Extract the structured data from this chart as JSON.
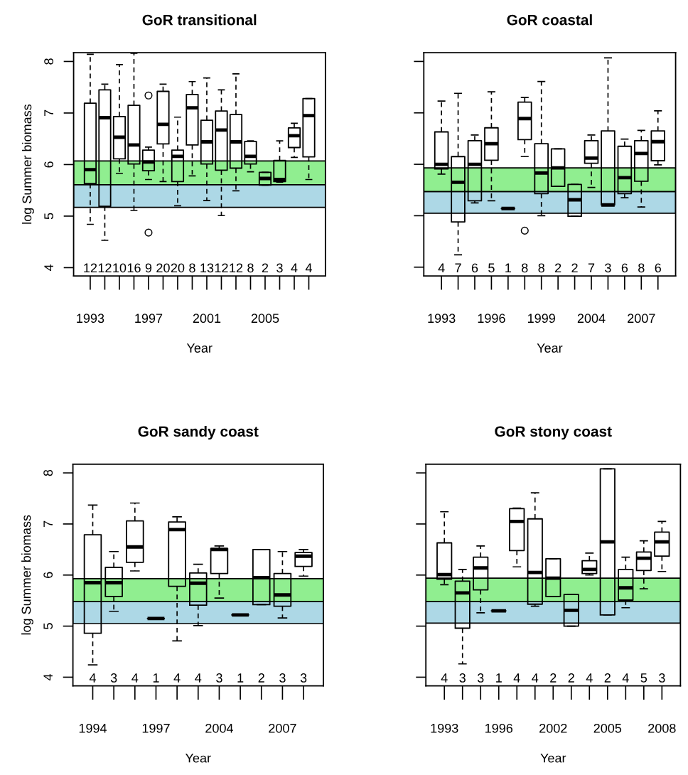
{
  "chart_data": [
    {
      "type": "box",
      "title": "GoR transitional",
      "xlabel": "Year",
      "ylabel": "log Summer biomass",
      "categories": [
        "1993",
        null,
        null,
        null,
        "1997",
        null,
        null,
        null,
        "2001",
        null,
        null,
        null,
        "2005",
        null,
        null,
        null
      ],
      "boxes": [
        {
          "low": 4.84,
          "q1": 5.63,
          "median": 5.9,
          "q3": 7.19,
          "high": 8.14
        },
        {
          "low": 4.53,
          "q1": 5.19,
          "median": 6.91,
          "q3": 7.45,
          "high": 7.56
        },
        {
          "low": 5.83,
          "q1": 6.11,
          "median": 6.53,
          "q3": 6.93,
          "high": 7.94
        },
        {
          "low": 5.11,
          "q1": 6.01,
          "median": 6.38,
          "q3": 7.15,
          "high": 8.16
        },
        {
          "low": 5.71,
          "q1": 5.88,
          "median": 6.05,
          "q3": 6.28,
          "high": 6.34,
          "outliers": [
            7.34,
            4.68
          ]
        },
        {
          "low": 5.67,
          "q1": 6.4,
          "median": 6.78,
          "q3": 7.42,
          "high": 7.56
        },
        {
          "low": 5.2,
          "q1": 5.67,
          "median": 6.16,
          "q3": 6.28,
          "high": 6.92
        },
        {
          "low": 5.78,
          "q1": 6.38,
          "median": 7.1,
          "q3": 7.36,
          "high": 7.61
        },
        {
          "low": 5.3,
          "q1": 6.01,
          "median": 6.44,
          "q3": 6.86,
          "high": 7.68
        },
        {
          "low": 5.01,
          "q1": 5.89,
          "median": 6.67,
          "q3": 7.04,
          "high": 7.45
        },
        {
          "low": 5.49,
          "q1": 5.93,
          "median": 6.44,
          "q3": 6.97,
          "high": 7.76
        },
        {
          "low": 5.86,
          "q1": 6.01,
          "median": 6.16,
          "q3": 6.45,
          "high": 6.46
        },
        {
          "low": 5.6,
          "q1": 5.6,
          "median": 5.73,
          "q3": 5.85,
          "high": 5.85
        },
        {
          "low": 5.66,
          "q1": 5.67,
          "median": 5.71,
          "q3": 6.08,
          "high": 6.46
        },
        {
          "low": 6.14,
          "q1": 6.33,
          "median": 6.56,
          "q3": 6.71,
          "high": 6.8
        },
        {
          "low": 5.71,
          "q1": 6.15,
          "median": 6.95,
          "q3": 7.28,
          "high": 7.28
        }
      ],
      "value_labels": [
        "12",
        "12",
        "10",
        "16",
        "9",
        "20",
        "20",
        "8",
        "13",
        "12",
        "12",
        "8",
        "2",
        "3",
        "4",
        "4"
      ],
      "bands": [
        {
          "axis": "y",
          "from": 5.17,
          "to": 5.61,
          "color": "#add8e6"
        },
        {
          "axis": "y",
          "from": 5.61,
          "to": 6.07,
          "color": "#90ee90"
        }
      ],
      "ylim": [
        3.84,
        8.17
      ],
      "yticks": [
        4,
        5,
        6,
        7,
        8
      ]
    },
    {
      "type": "box",
      "title": "GoR coastal",
      "xlabel": "Year",
      "categories": [
        "1993",
        null,
        null,
        "1996",
        null,
        null,
        "1999",
        null,
        null,
        "2004",
        null,
        null,
        "2007",
        null
      ],
      "boxes": [
        {
          "low": 5.81,
          "q1": 5.91,
          "median": 6.0,
          "q3": 6.63,
          "high": 7.23
        },
        {
          "low": 4.24,
          "q1": 4.88,
          "median": 5.65,
          "q3": 6.15,
          "high": 7.38
        },
        {
          "low": 5.25,
          "q1": 5.29,
          "median": 6.0,
          "q3": 6.46,
          "high": 6.57
        },
        {
          "low": 5.29,
          "q1": 6.08,
          "median": 6.4,
          "q3": 6.71,
          "high": 7.41
        },
        {
          "low": 5.14,
          "q1": 5.14,
          "median": 5.14,
          "q3": 5.14,
          "high": 5.14
        },
        {
          "low": 6.15,
          "q1": 6.48,
          "median": 6.89,
          "q3": 7.21,
          "high": 7.3,
          "outliers": [
            4.71
          ]
        },
        {
          "low": 5.0,
          "q1": 5.43,
          "median": 5.83,
          "q3": 6.4,
          "high": 7.61
        },
        {
          "low": 5.57,
          "q1": 5.57,
          "median": 5.93,
          "q3": 6.3,
          "high": 6.3
        },
        {
          "low": 4.99,
          "q1": 4.99,
          "median": 5.31,
          "q3": 5.61,
          "high": 5.61
        },
        {
          "low": 5.55,
          "q1": 6.02,
          "median": 6.12,
          "q3": 6.46,
          "high": 6.57
        },
        {
          "low": 5.21,
          "q1": 5.21,
          "median": 5.21,
          "q3": 6.65,
          "high": 8.07
        },
        {
          "low": 5.35,
          "q1": 5.43,
          "median": 5.74,
          "q3": 6.35,
          "high": 6.49
        },
        {
          "low": 5.17,
          "q1": 5.67,
          "median": 6.21,
          "q3": 6.46,
          "high": 6.66
        },
        {
          "low": 5.99,
          "q1": 6.07,
          "median": 6.44,
          "q3": 6.65,
          "high": 7.04
        }
      ],
      "value_labels": [
        "4",
        "7",
        "6",
        "5",
        "1",
        "8",
        "8",
        "2",
        "2",
        "7",
        "3",
        "6",
        "8",
        "6"
      ],
      "bands": [
        {
          "axis": "y",
          "from": 5.05,
          "to": 5.47,
          "color": "#add8e6"
        },
        {
          "axis": "y",
          "from": 5.47,
          "to": 5.93,
          "color": "#90ee90"
        }
      ],
      "ylim": [
        3.83,
        8.17
      ],
      "yticks": [
        4,
        5,
        6,
        7,
        8
      ],
      "tick_labels": "x"
    },
    {
      "type": "box",
      "title": "GoR sandy coast",
      "xlabel": "Year",
      "ylabel": "log Summer biomass",
      "categories": [
        "1994",
        null,
        null,
        "1997",
        null,
        null,
        "2004",
        null,
        null,
        "2007",
        null
      ],
      "boxes": [
        {
          "low": 4.24,
          "q1": 4.86,
          "median": 5.85,
          "q3": 6.79,
          "high": 7.37
        },
        {
          "low": 5.29,
          "q1": 5.58,
          "median": 5.85,
          "q3": 6.15,
          "high": 6.46
        },
        {
          "low": 6.08,
          "q1": 6.25,
          "median": 6.55,
          "q3": 7.06,
          "high": 7.41
        },
        {
          "low": 5.15,
          "q1": 5.15,
          "median": 5.15,
          "q3": 5.15,
          "high": 5.15
        },
        {
          "low": 4.71,
          "q1": 5.78,
          "median": 6.89,
          "q3": 7.04,
          "high": 7.14
        },
        {
          "low": 5.01,
          "q1": 5.41,
          "median": 5.84,
          "q3": 6.04,
          "high": 6.21
        },
        {
          "low": 5.55,
          "q1": 6.03,
          "median": 6.5,
          "q3": 6.52,
          "high": 6.57
        },
        {
          "low": 5.22,
          "q1": 5.22,
          "median": 5.22,
          "q3": 5.22,
          "high": 5.22
        },
        {
          "low": 5.42,
          "q1": 5.42,
          "median": 5.95,
          "q3": 6.5,
          "high": 6.5
        },
        {
          "low": 5.16,
          "q1": 5.39,
          "median": 5.61,
          "q3": 6.03,
          "high": 6.46
        },
        {
          "low": 5.98,
          "q1": 6.17,
          "median": 6.37,
          "q3": 6.44,
          "high": 6.5
        }
      ],
      "value_labels": [
        "4",
        "3",
        "4",
        "1",
        "4",
        "4",
        "3",
        "1",
        "2",
        "3",
        "3"
      ],
      "bands": [
        {
          "axis": "y",
          "from": 5.05,
          "to": 5.48,
          "color": "#add8e6"
        },
        {
          "axis": "y",
          "from": 5.48,
          "to": 5.93,
          "color": "#90ee90"
        }
      ],
      "ylim": [
        3.83,
        8.17
      ],
      "yticks": [
        4,
        5,
        6,
        7,
        8
      ]
    },
    {
      "type": "box",
      "title": "GoR stony coast",
      "xlabel": "Year",
      "categories": [
        "1993",
        null,
        null,
        "1996",
        null,
        null,
        "2002",
        null,
        null,
        "2005",
        null,
        null,
        "2008"
      ],
      "boxes": [
        {
          "low": 5.81,
          "q1": 5.92,
          "median": 6.01,
          "q3": 6.63,
          "high": 7.24
        },
        {
          "low": 4.26,
          "q1": 4.96,
          "median": 5.65,
          "q3": 5.88,
          "high": 6.11
        },
        {
          "low": 5.26,
          "q1": 5.71,
          "median": 6.14,
          "q3": 6.35,
          "high": 6.57
        },
        {
          "low": 5.3,
          "q1": 5.3,
          "median": 5.3,
          "q3": 5.3,
          "high": 5.3
        },
        {
          "low": 6.16,
          "q1": 6.48,
          "median": 7.05,
          "q3": 7.3,
          "high": 7.31
        },
        {
          "low": 5.39,
          "q1": 5.43,
          "median": 6.05,
          "q3": 7.1,
          "high": 7.61
        },
        {
          "low": 5.58,
          "q1": 5.58,
          "median": 5.94,
          "q3": 6.32,
          "high": 6.32
        },
        {
          "low": 5.0,
          "q1": 5.0,
          "median": 5.31,
          "q3": 5.62,
          "high": 5.62
        },
        {
          "low": 6.0,
          "q1": 6.03,
          "median": 6.11,
          "q3": 6.28,
          "high": 6.43
        },
        {
          "low": 5.22,
          "q1": 5.22,
          "median": 6.65,
          "q3": 8.08,
          "high": 8.08
        },
        {
          "low": 5.36,
          "q1": 5.51,
          "median": 5.75,
          "q3": 6.11,
          "high": 6.35
        },
        {
          "low": 5.73,
          "q1": 6.09,
          "median": 6.33,
          "q3": 6.45,
          "high": 6.67
        },
        {
          "low": 6.07,
          "q1": 6.37,
          "median": 6.65,
          "q3": 6.84,
          "high": 7.05
        }
      ],
      "value_labels": [
        "4",
        "3",
        "3",
        "1",
        "4",
        "4",
        "2",
        "2",
        "4",
        "2",
        "4",
        "5",
        "3"
      ],
      "bands": [
        {
          "axis": "y",
          "from": 5.06,
          "to": 5.48,
          "color": "#add8e6"
        },
        {
          "axis": "y",
          "from": 5.48,
          "to": 5.94,
          "color": "#90ee90"
        }
      ],
      "ylim": [
        3.83,
        8.17
      ],
      "yticks": [
        4,
        5,
        6,
        7,
        8
      ],
      "tick_labels": "x"
    }
  ]
}
